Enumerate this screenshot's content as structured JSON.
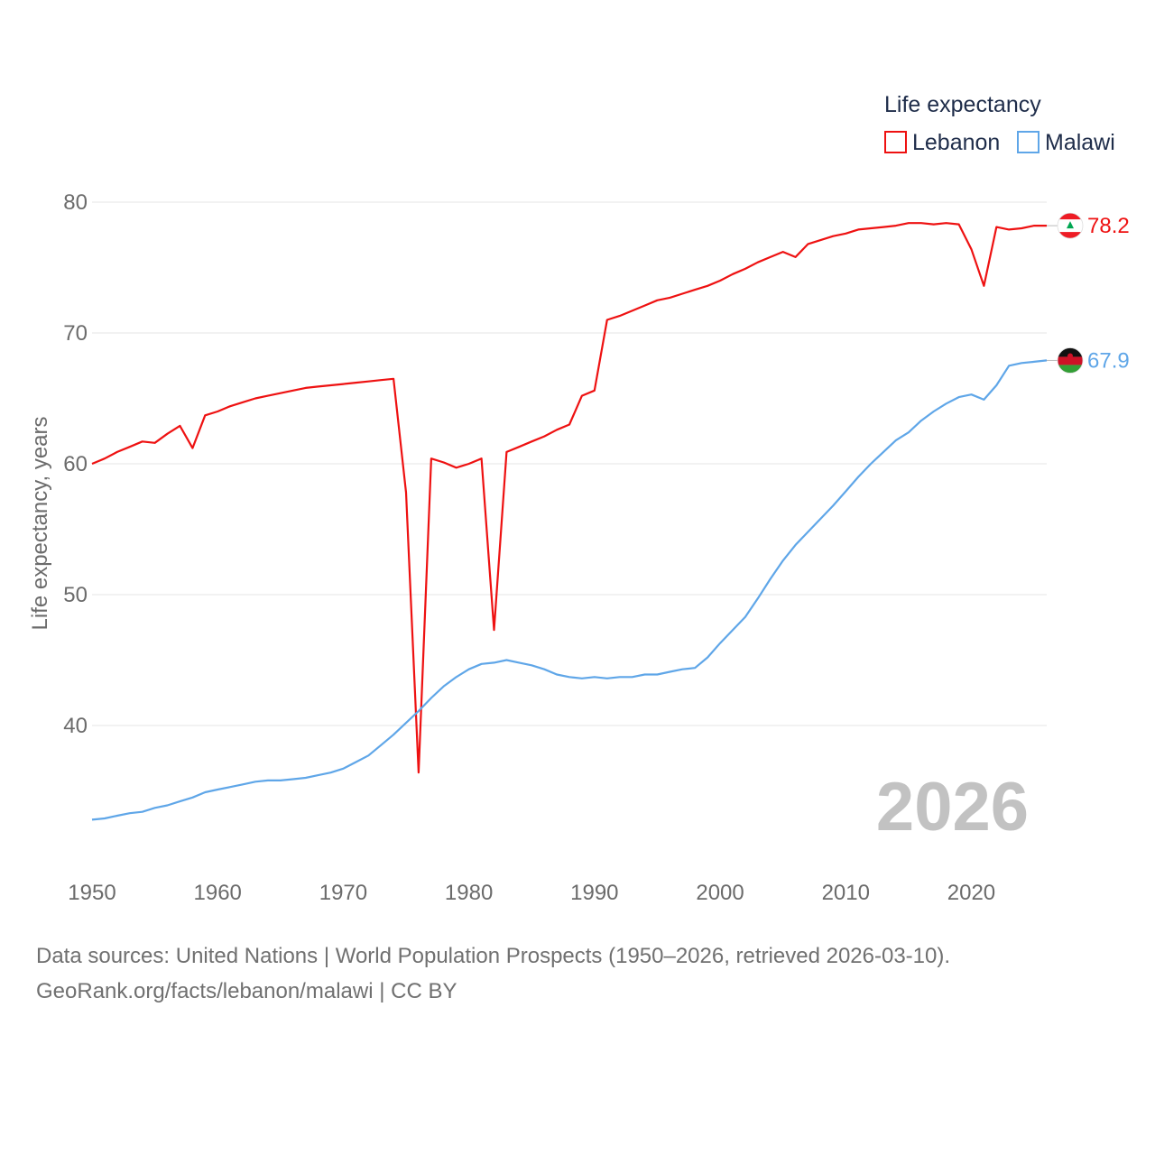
{
  "chart_data": {
    "type": "line",
    "title": "",
    "legend_title": "Life expectancy",
    "xlabel": "",
    "ylabel": "Life expectancy, years",
    "xlim": [
      1950,
      2026
    ],
    "ylim": [
      30,
      82
    ],
    "xticks": [
      1950,
      1960,
      1970,
      1980,
      1990,
      2000,
      2010,
      2020
    ],
    "yticks": [
      40,
      50,
      60,
      70,
      80
    ],
    "grid": true,
    "legend_position": "top-right",
    "year_label": "2026",
    "series": [
      {
        "name": "Lebanon",
        "color": "#ee1111",
        "end_label": "78.2",
        "flag": "lebanon-flag-icon",
        "x": [
          1950,
          1951,
          1952,
          1953,
          1954,
          1955,
          1956,
          1957,
          1958,
          1959,
          1960,
          1961,
          1962,
          1963,
          1964,
          1965,
          1966,
          1967,
          1968,
          1969,
          1970,
          1971,
          1972,
          1973,
          1974,
          1975,
          1976,
          1977,
          1978,
          1979,
          1980,
          1981,
          1982,
          1983,
          1984,
          1985,
          1986,
          1987,
          1988,
          1989,
          1990,
          1991,
          1992,
          1993,
          1994,
          1995,
          1996,
          1997,
          1998,
          1999,
          2000,
          2001,
          2002,
          2003,
          2004,
          2005,
          2006,
          2007,
          2008,
          2009,
          2010,
          2011,
          2012,
          2013,
          2014,
          2015,
          2016,
          2017,
          2018,
          2019,
          2020,
          2021,
          2022,
          2023,
          2024,
          2025,
          2026
        ],
        "values": [
          60.0,
          60.4,
          60.9,
          61.3,
          61.7,
          61.6,
          62.3,
          62.9,
          61.2,
          63.7,
          64.0,
          64.4,
          64.7,
          65.0,
          65.2,
          65.4,
          65.6,
          65.8,
          65.9,
          66.0,
          66.1,
          66.2,
          66.3,
          66.4,
          66.5,
          57.8,
          36.4,
          60.4,
          60.1,
          59.7,
          60.0,
          60.4,
          47.3,
          60.9,
          61.3,
          61.7,
          62.1,
          62.6,
          63.0,
          65.2,
          65.6,
          71.0,
          71.3,
          71.7,
          72.1,
          72.5,
          72.7,
          73.0,
          73.3,
          73.6,
          74.0,
          74.5,
          74.9,
          75.4,
          75.8,
          76.2,
          75.8,
          76.8,
          77.1,
          77.4,
          77.6,
          77.9,
          78.0,
          78.1,
          78.2,
          78.4,
          78.4,
          78.3,
          78.4,
          78.3,
          76.4,
          73.6,
          78.1,
          77.9,
          78.0,
          78.2,
          78.2
        ]
      },
      {
        "name": "Malawi",
        "color": "#5fa6e8",
        "end_label": "67.9",
        "flag": "malawi-flag-icon",
        "x": [
          1950,
          1951,
          1952,
          1953,
          1954,
          1955,
          1956,
          1957,
          1958,
          1959,
          1960,
          1961,
          1962,
          1963,
          1964,
          1965,
          1966,
          1967,
          1968,
          1969,
          1970,
          1971,
          1972,
          1973,
          1974,
          1975,
          1976,
          1977,
          1978,
          1979,
          1980,
          1981,
          1982,
          1983,
          1984,
          1985,
          1986,
          1987,
          1988,
          1989,
          1990,
          1991,
          1992,
          1993,
          1994,
          1995,
          1996,
          1997,
          1998,
          1999,
          2000,
          2001,
          2002,
          2003,
          2004,
          2005,
          2006,
          2007,
          2008,
          2009,
          2010,
          2011,
          2012,
          2013,
          2014,
          2015,
          2016,
          2017,
          2018,
          2019,
          2020,
          2021,
          2022,
          2023,
          2024,
          2025,
          2026
        ],
        "values": [
          32.8,
          32.9,
          33.1,
          33.3,
          33.4,
          33.7,
          33.9,
          34.2,
          34.5,
          34.9,
          35.1,
          35.3,
          35.5,
          35.7,
          35.8,
          35.8,
          35.9,
          36.0,
          36.2,
          36.4,
          36.7,
          37.2,
          37.7,
          38.5,
          39.3,
          40.2,
          41.1,
          42.1,
          43.0,
          43.7,
          44.3,
          44.7,
          44.8,
          45.0,
          44.8,
          44.6,
          44.3,
          43.9,
          43.7,
          43.6,
          43.7,
          43.6,
          43.7,
          43.7,
          43.9,
          43.9,
          44.1,
          44.3,
          44.4,
          45.2,
          46.3,
          47.3,
          48.3,
          49.7,
          51.2,
          52.6,
          53.8,
          54.8,
          55.8,
          56.8,
          57.9,
          59.0,
          60.0,
          60.9,
          61.8,
          62.4,
          63.3,
          64.0,
          64.6,
          65.1,
          65.3,
          64.9,
          66.0,
          67.5,
          67.7,
          67.8,
          67.9
        ]
      }
    ]
  },
  "footer": {
    "source_line": "Data sources: United Nations | World Population Prospects (1950–2026, retrieved 2026-03-10).",
    "credit_line": "GeoRank.org/facts/lebanon/malawi | CC BY"
  }
}
